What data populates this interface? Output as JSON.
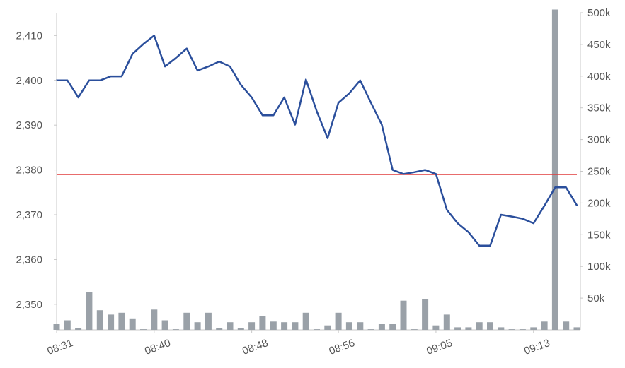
{
  "chart_data": {
    "type": "line",
    "title": "",
    "xlabel": "",
    "ylabel": "",
    "x_tick_labels": [
      "08:31",
      "08:40",
      "08:48",
      "08:56",
      "09:05",
      "09:13"
    ],
    "x_tick_index": [
      0,
      9,
      18,
      26,
      35,
      44
    ],
    "price_axis": {
      "ticks": [
        "2,410",
        "2,400",
        "2,390",
        "2,380",
        "2,370",
        "2,360",
        "2,350"
      ],
      "tick_values": [
        2410,
        2400,
        2390,
        2380,
        2370,
        2360,
        2350
      ],
      "ylim": [
        2344.3,
        2415.1
      ],
      "position": "left"
    },
    "volume_axis": {
      "ticks": [
        "500k",
        "450k",
        "400k",
        "350k",
        "300k",
        "250k",
        "200k",
        "150k",
        "100k",
        "50k"
      ],
      "tick_values": [
        500000,
        450000,
        400000,
        350000,
        300000,
        250000,
        200000,
        150000,
        100000,
        50000
      ],
      "ylim": [
        0,
        500000
      ],
      "position": "right"
    },
    "reference_line": {
      "value": 2379,
      "color": "#e03b3b"
    },
    "series": [
      {
        "type": "line",
        "color": "#2b4f9c",
        "values": [
          2400,
          2400,
          2396.2,
          2400,
          2400,
          2400.9,
          2400.9,
          2405.9,
          2408.1,
          2410,
          2403.1,
          2405,
          2407.1,
          2402.2,
          2403.1,
          2404.2,
          2403.1,
          2399,
          2396.2,
          2392.2,
          2392.2,
          2396.2,
          2390.1,
          2400.2,
          2393.1,
          2387.1,
          2395,
          2397.1,
          2400,
          2395,
          2390.1,
          2380,
          2379.1,
          2379.5,
          2380,
          2379.1,
          2371.1,
          2368.1,
          2366.1,
          2363.1,
          2363.1,
          2370,
          2369.6,
          2369.1,
          2368.1,
          2372,
          2376.1,
          2376.1,
          2372.1
        ]
      },
      {
        "type": "bar",
        "color": "#9aa1a8",
        "values": [
          9000,
          15000,
          3000,
          60000,
          31000,
          24000,
          27000,
          18000,
          1000,
          32000,
          15000,
          1000,
          27000,
          12000,
          27000,
          3000,
          12000,
          3000,
          12000,
          22000,
          13000,
          12000,
          12000,
          27000,
          1000,
          7000,
          27000,
          12000,
          12000,
          1000,
          9000,
          9000,
          46000,
          1000,
          48000,
          7000,
          24000,
          4000,
          4000,
          12000,
          12000,
          4000,
          1000,
          1000,
          4000,
          13000,
          505000,
          13000,
          4000
        ]
      }
    ],
    "grid": false,
    "legend": "none"
  }
}
